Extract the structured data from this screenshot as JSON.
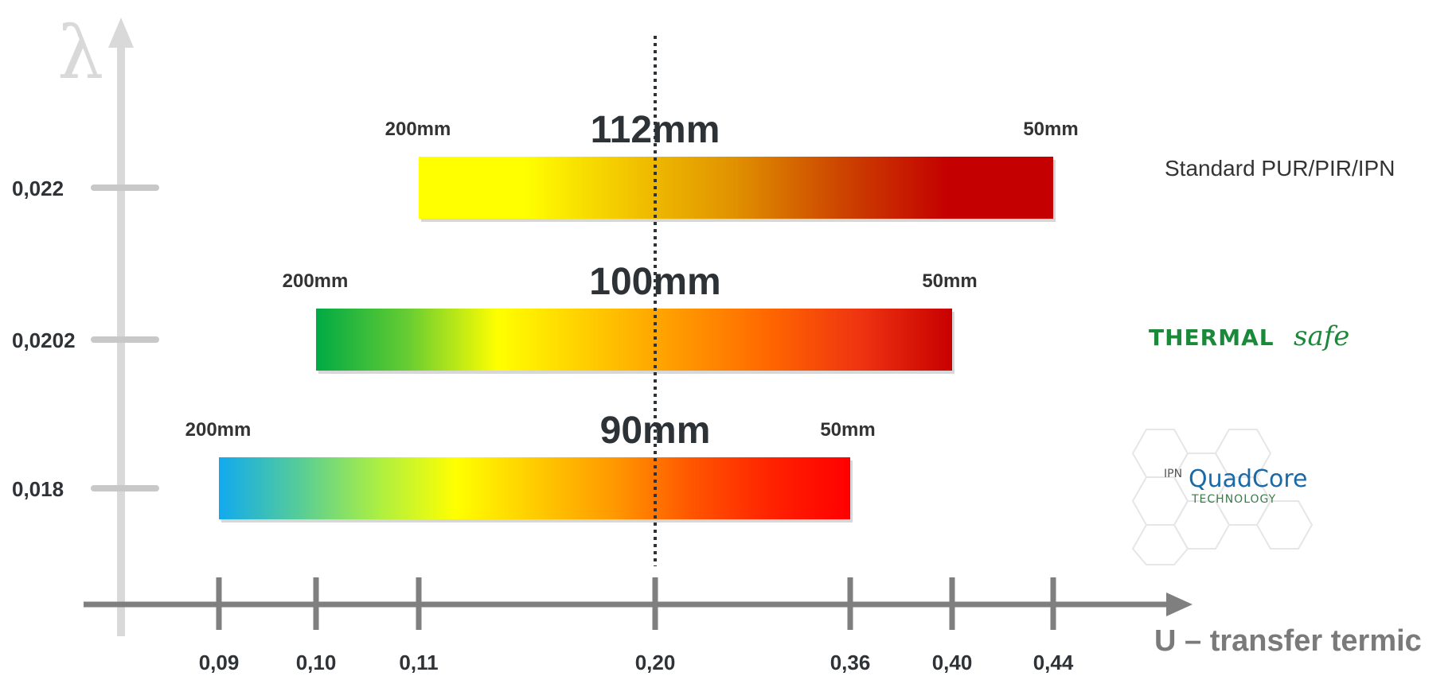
{
  "chart_data": {
    "type": "bar",
    "y_axis_symbol": "λ",
    "xlabel": "U – transfer termic",
    "x_ticks": [
      "0,09",
      "0,10",
      "0,11",
      "0,20",
      "0,36",
      "0,40",
      "0,44"
    ],
    "reference_line_x": "0,20",
    "series": [
      {
        "lambda": "0,022",
        "label": "Standard PUR/PIR/IPN",
        "x_start": "0,11",
        "x_end": "0,44",
        "start_label": "200mm",
        "end_label": "50mm",
        "thickness_at_reference": "112mm",
        "colors": [
          "#ffff00",
          "#ffff00",
          "#f2c400",
          "#e09000",
          "#cc4400",
          "#c40000",
          "#c40000"
        ]
      },
      {
        "lambda": "0,0202",
        "label": "THERMALsafe",
        "x_start": "0,10",
        "x_end": "0,40",
        "start_label": "200mm",
        "end_label": "50mm",
        "thickness_at_reference": "100mm",
        "colors": [
          "#00aa44",
          "#66cc33",
          "#ffff00",
          "#ffcc00",
          "#ff9900",
          "#ff6600",
          "#ee3311",
          "#c80000"
        ]
      },
      {
        "lambda": "0,018",
        "label": "IPN QuadCore TECHNOLOGY",
        "x_start": "0,09",
        "x_end": "0,36",
        "start_label": "200mm",
        "end_label": "50mm",
        "thickness_at_reference": "90mm",
        "colors": [
          "#11aaee",
          "#55cc99",
          "#aaee44",
          "#ffff00",
          "#ffcc00",
          "#ff9900",
          "#ff5500",
          "#ff2200",
          "#ff0000"
        ]
      }
    ]
  },
  "logos": {
    "thermalsafe_main": "THERMAL",
    "thermalsafe_script": "safe",
    "quadcore_prefix": "IPN",
    "quadcore_main": "QuadCore",
    "quadcore_sub": "TECHNOLOGY"
  }
}
